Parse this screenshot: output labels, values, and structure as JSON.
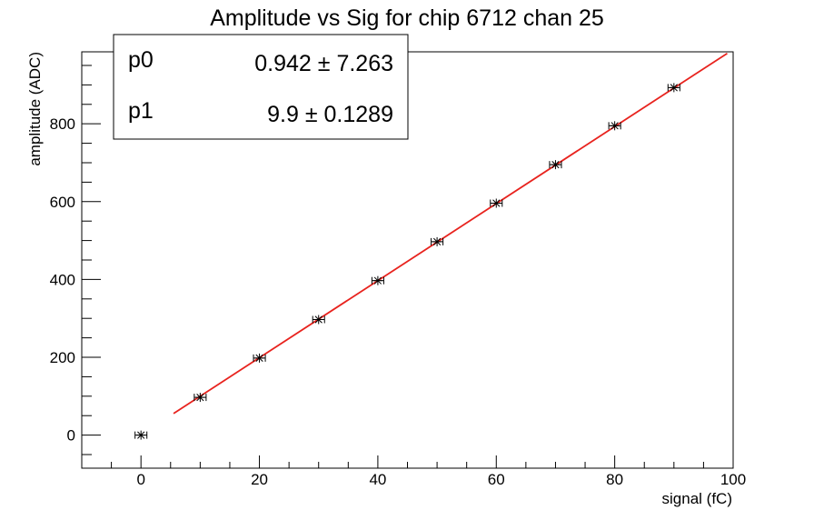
{
  "chart_data": {
    "type": "scatter",
    "title": "Amplitude vs Sig for chip 6712 chan 25",
    "xlabel": "signal (fC)",
    "ylabel": "amplitude (ADC)",
    "xlim": [
      -10,
      100
    ],
    "ylim": [
      -85,
      985
    ],
    "xticks": [
      0,
      20,
      40,
      60,
      80,
      100
    ],
    "xtick_labels": [
      "0",
      "20",
      "40",
      "60",
      "80",
      "100"
    ],
    "yticks": [
      0,
      200,
      400,
      600,
      800
    ],
    "ytick_labels": [
      "0",
      "200",
      "400",
      "600",
      "800"
    ],
    "grid": false,
    "series": [
      {
        "marker": "star",
        "color": "#000000",
        "x": [
          0,
          10,
          20,
          30,
          40,
          50,
          60,
          70,
          80,
          90
        ],
        "y": [
          0,
          97,
          198,
          297,
          397,
          497,
          596,
          695,
          795,
          893
        ],
        "xerr": 1
      }
    ],
    "fit": {
      "color": "#e8231e",
      "p0": 0.942,
      "p1": 9.9,
      "x_range": [
        5.5,
        99
      ]
    },
    "stats_box": {
      "placement": "top-left",
      "rows": [
        {
          "name": "p0",
          "value": "0.942 ± 7.263"
        },
        {
          "name": "p1",
          "value": "9.9 ± 0.1289"
        }
      ]
    }
  }
}
